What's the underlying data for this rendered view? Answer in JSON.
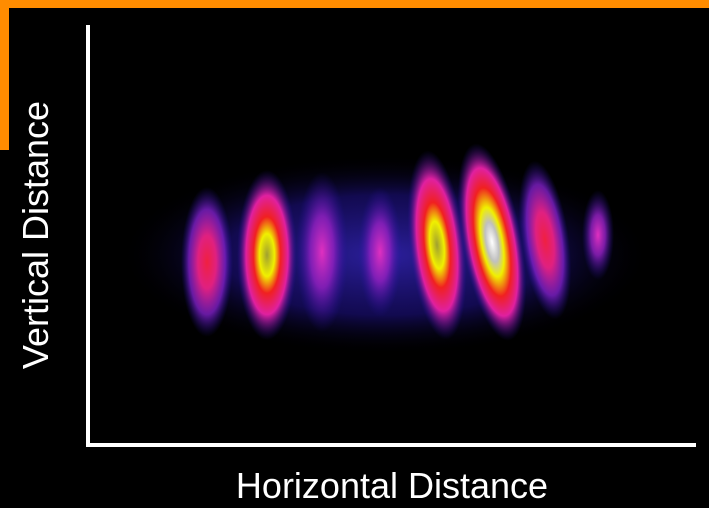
{
  "axes": {
    "x_label": "Horizontal Distance",
    "y_label": "Vertical Distance"
  }
}
